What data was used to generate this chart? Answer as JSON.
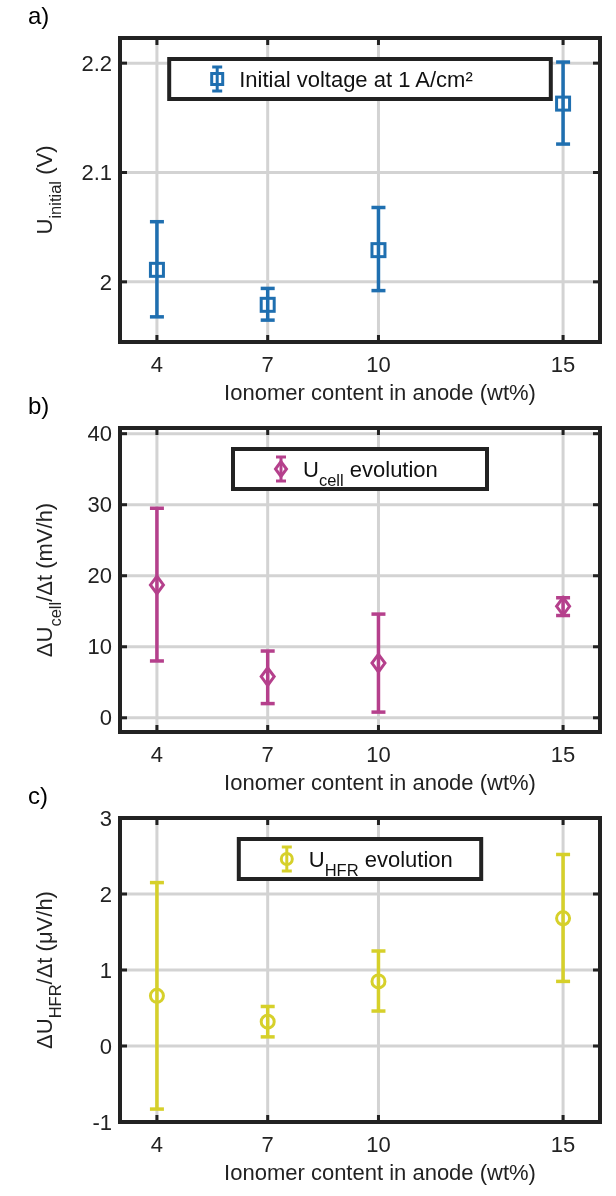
{
  "chart_data": [
    {
      "type": "scatter",
      "title": "a)",
      "xlabel": "Ionomer content in anode (wt%)",
      "ylabel": "U$_{initial}$ (V)",
      "x": [
        4,
        7,
        10,
        15
      ],
      "xlim": [
        3,
        16
      ],
      "xticks": [
        4,
        7,
        10,
        15
      ],
      "ylim": [
        1.945,
        2.223
      ],
      "yticks": [
        {
          "value": 2,
          "label": "2"
        },
        2.1,
        2.2
      ],
      "grid": true,
      "legend": "top",
      "marker": "square",
      "series": [
        {
          "name": "Initial voltage at 1 A/cm²",
          "color": "#1f6fb0",
          "values": [
            2.011,
            1.979,
            2.029,
            2.163
          ],
          "errors": [
            [
              1.968,
              2.055
            ],
            [
              1.965,
              1.994
            ],
            [
              1.992,
              2.068
            ],
            [
              2.126,
              2.201
            ]
          ]
        }
      ]
    },
    {
      "type": "scatter",
      "title": "b)",
      "xlabel": "Ionomer content in anode (wt%)",
      "ylabel": "ΔU$_{cell}$/Δt (mV/h)",
      "x": [
        4,
        7,
        10,
        15
      ],
      "xlim": [
        3,
        16
      ],
      "xticks": [
        4,
        7,
        10,
        15
      ],
      "ylim": [
        -2,
        40.8
      ],
      "yticks": [
        0,
        10,
        20,
        30,
        40
      ],
      "grid": true,
      "legend": "top",
      "marker": "diamond",
      "series": [
        {
          "name": "U$_{cell}$ evolution",
          "color": "#b5408c",
          "values": [
            18.7,
            5.8,
            7.7,
            15.7
          ],
          "errors": [
            [
              8.0,
              29.5
            ],
            [
              2.0,
              9.4
            ],
            [
              0.8,
              14.6
            ],
            [
              14.4,
              16.9
            ]
          ]
        }
      ]
    },
    {
      "type": "scatter",
      "title": "c)",
      "xlabel": "Ionomer content in anode (wt%)",
      "ylabel": "ΔU$_{HFR}$/Δt (μV/h)",
      "x": [
        4,
        7,
        10,
        15
      ],
      "xlim": [
        3,
        16
      ],
      "xticks": [
        4,
        7,
        10,
        15
      ],
      "ylim": [
        -1,
        3
      ],
      "yticks": [
        -1,
        0,
        1,
        2,
        3
      ],
      "grid": true,
      "legend": "top",
      "marker": "circle",
      "series": [
        {
          "name": "U$_{HFR}$ evolution",
          "color": "#d6d02a",
          "values": [
            0.66,
            0.32,
            0.85,
            1.68
          ],
          "errors": [
            [
              -0.83,
              2.15
            ],
            [
              0.12,
              0.52
            ],
            [
              0.46,
              1.25
            ],
            [
              0.85,
              2.52
            ]
          ]
        }
      ]
    }
  ]
}
